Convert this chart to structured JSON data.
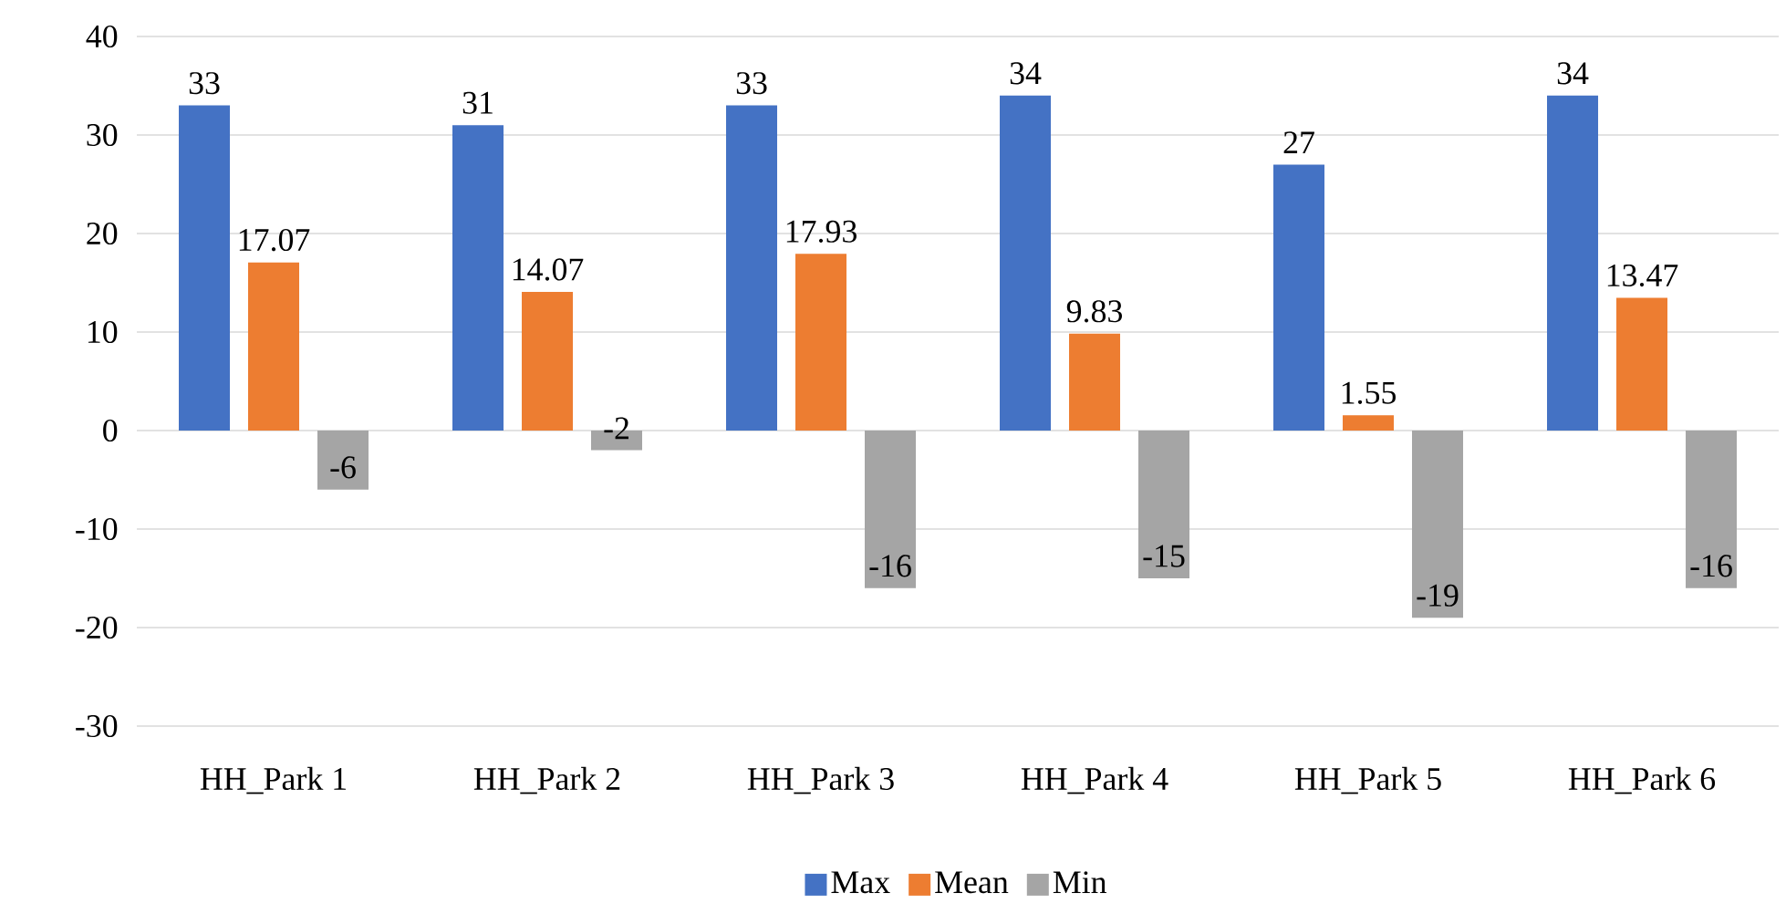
{
  "chart_data": {
    "type": "bar",
    "categories": [
      "HH_Park 1",
      "HH_Park 2",
      "HH_Park 3",
      "HH_Park 4",
      "HH_Park 5",
      "HH_Park 6"
    ],
    "series": [
      {
        "name": "Max",
        "color": "#4472c4",
        "values": [
          33,
          31,
          33,
          34,
          27,
          34
        ]
      },
      {
        "name": "Mean",
        "color": "#ed7d31",
        "values": [
          17.07,
          14.07,
          17.93,
          9.83,
          1.55,
          13.47
        ]
      },
      {
        "name": "Min",
        "color": "#a5a5a5",
        "values": [
          -6,
          -2,
          -16,
          -15,
          -19,
          -16
        ]
      }
    ],
    "ylim": [
      -30,
      40
    ],
    "yticks": [
      -30,
      -20,
      -10,
      0,
      10,
      20,
      30,
      40
    ],
    "grid": "y",
    "legend": "bottom",
    "data_labels": true
  }
}
